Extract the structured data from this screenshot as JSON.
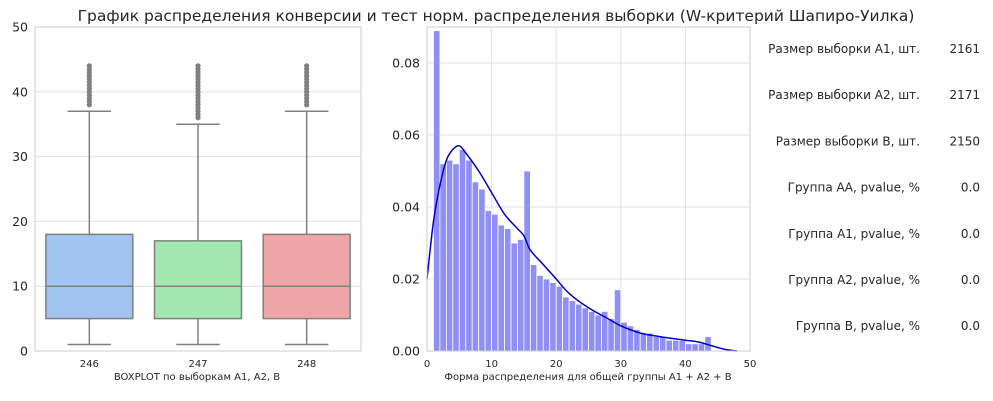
{
  "title": "График распределения конверсии и тест норм. распределения выборки (W-критерий Шапиро-Уилка)",
  "chart_data": [
    {
      "type": "box",
      "xlabel": "BOXPLOT по выборкам А1, А2, B",
      "ylim": [
        0,
        50
      ],
      "yticks": [
        0,
        10,
        20,
        30,
        40,
        50
      ],
      "grid": true,
      "categories": [
        "246",
        "247",
        "248"
      ],
      "boxes": [
        {
          "category": "246",
          "q1": 5,
          "median": 10,
          "q3": 18,
          "whisker_low": 1,
          "whisker_high": 37,
          "outliers": [
            38,
            38.5,
            39,
            39.5,
            40,
            40.5,
            41,
            41.5,
            42,
            42.5,
            43,
            43.5,
            44
          ],
          "color": "#a1c4f0"
        },
        {
          "category": "247",
          "q1": 5,
          "median": 10,
          "q3": 17,
          "whisker_low": 1,
          "whisker_high": 35,
          "outliers": [
            36,
            36.5,
            37,
            37.5,
            38,
            38.5,
            39,
            39.5,
            40,
            40.5,
            41,
            41.5,
            42,
            42.5,
            43,
            43.5,
            44
          ],
          "color": "#a4e8b1"
        },
        {
          "category": "248",
          "q1": 5,
          "median": 10,
          "q3": 18,
          "whisker_low": 1,
          "whisker_high": 37,
          "outliers": [
            38,
            38.5,
            39,
            39.5,
            40,
            40.5,
            41,
            41.5,
            42,
            42.5,
            43,
            43.5,
            44
          ],
          "color": "#eea5a5"
        }
      ]
    },
    {
      "type": "histogram",
      "xlabel": "Форма распределения для общей группы А1 + А2 + B",
      "xlim": [
        0,
        50
      ],
      "ylim": [
        0,
        0.09
      ],
      "xticks": [
        0,
        10,
        20,
        30,
        40,
        50
      ],
      "yticks": [
        "0.00",
        "0.02",
        "0.04",
        "0.06",
        "0.08"
      ],
      "grid": true,
      "bin_width": 1,
      "bin_start": 1,
      "bar_color": "#8f8ff5",
      "density": [
        0.089,
        0.052,
        0.053,
        0.052,
        0.056,
        0.053,
        0.047,
        0.045,
        0.039,
        0.038,
        0.035,
        0.034,
        0.03,
        0.031,
        0.05,
        0.024,
        0.021,
        0.02,
        0.019,
        0.018,
        0.015,
        0.014,
        0.013,
        0.012,
        0.011,
        0.01,
        0.011,
        0.009,
        0.017,
        0.008,
        0.007,
        0.006,
        0.005,
        0.005,
        0.004,
        0.004,
        0.003,
        0.003,
        0.003,
        0.002,
        0.002,
        0.002,
        0.004
      ],
      "kde_color": "#0000cc",
      "kde": [
        [
          0,
          0.02
        ],
        [
          1,
          0.036
        ],
        [
          2,
          0.046
        ],
        [
          3,
          0.053
        ],
        [
          4,
          0.056
        ],
        [
          5,
          0.057
        ],
        [
          6,
          0.055
        ],
        [
          8,
          0.05
        ],
        [
          10,
          0.044
        ],
        [
          12,
          0.038
        ],
        [
          14,
          0.034
        ],
        [
          15,
          0.032
        ],
        [
          16,
          0.028
        ],
        [
          18,
          0.024
        ],
        [
          20,
          0.02
        ],
        [
          22,
          0.016
        ],
        [
          25,
          0.012
        ],
        [
          28,
          0.009
        ],
        [
          30,
          0.007
        ],
        [
          33,
          0.005
        ],
        [
          36,
          0.004
        ],
        [
          40,
          0.003
        ],
        [
          42,
          0.0025
        ],
        [
          44,
          0.0015
        ],
        [
          46,
          0.0005
        ],
        [
          48,
          0.0
        ]
      ]
    }
  ],
  "stats": [
    {
      "label": "Размер выборки А1, шт.",
      "value": "2161"
    },
    {
      "label": "Размер выборки А2, шт.",
      "value": "2171"
    },
    {
      "label": "Размер выборки B, шт.",
      "value": "2150"
    },
    {
      "label": "Группа АА, pvalue, %",
      "value": "0.0"
    },
    {
      "label": "Группа А1, pvalue, %",
      "value": "0.0"
    },
    {
      "label": "Группа А2, pvalue, %",
      "value": "0.0"
    },
    {
      "label": "Группа B, pvalue, %",
      "value": "0.0"
    }
  ],
  "colors": {
    "grid": "#e0e0e0",
    "axis": "#cccccc",
    "box_line": "#808080",
    "outlier": "#808080"
  }
}
